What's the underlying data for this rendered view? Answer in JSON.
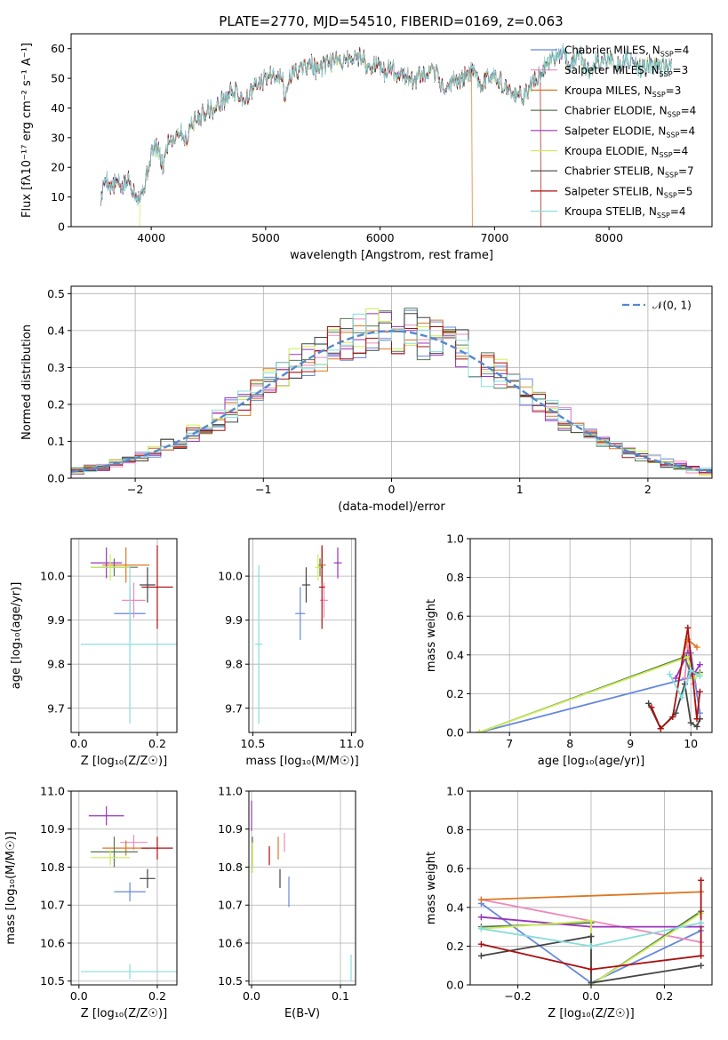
{
  "figure_title": "PLATE=2770, MJD=54510, FIBERID=0169, z=0.063",
  "series_meta": [
    {
      "name": "Chabrier MILES",
      "nssp": "4",
      "color": "#6688dd"
    },
    {
      "name": "Salpeter MILES",
      "nssp": "3",
      "color": "#ee88bb"
    },
    {
      "name": "Kroupa MILES",
      "nssp": "3",
      "color": "#dd7722"
    },
    {
      "name": "Chabrier ELODIE",
      "nssp": "4",
      "color": "#557755"
    },
    {
      "name": "Salpeter ELODIE",
      "nssp": "4",
      "color": "#9933bb"
    },
    {
      "name": "Kroupa ELODIE",
      "nssp": "4",
      "color": "#ccee55"
    },
    {
      "name": "Chabrier STELIB",
      "nssp": "7",
      "color": "#444444"
    },
    {
      "name": "Salpeter STELIB",
      "nssp": "5",
      "color": "#aa1111"
    },
    {
      "name": "Kroupa STELIB",
      "nssp": "4",
      "color": "#88dddd"
    }
  ],
  "chart_data": [
    {
      "id": "spectrum",
      "type": "line",
      "xlabel": "wavelength [Angstrom, rest frame]",
      "ylabel": "Flux [fλ10⁻¹⁷ erg cm⁻² s⁻¹ A⁻¹]",
      "xlim": [
        3300,
        8900
      ],
      "ylim": [
        0,
        65
      ],
      "xticks": [
        4000,
        5000,
        6000,
        7000,
        8000
      ],
      "yticks": [
        0,
        10,
        20,
        30,
        40,
        50,
        60
      ],
      "legend": "top-right",
      "grid": false,
      "x": [
        3560,
        3600,
        3650,
        3700,
        3750,
        3800,
        3850,
        3900,
        3950,
        4000,
        4050,
        4100,
        4150,
        4200,
        4250,
        4300,
        4350,
        4400,
        4450,
        4500,
        4550,
        4600,
        4650,
        4700,
        4750,
        4800,
        4850,
        4900,
        4950,
        5000,
        5050,
        5100,
        5150,
        5175,
        5200,
        5250,
        5300,
        5350,
        5400,
        5450,
        5500,
        5550,
        5600,
        5650,
        5700,
        5750,
        5800,
        5850,
        5890,
        5900,
        5950,
        6000,
        6050,
        6100,
        6150,
        6200,
        6250,
        6300,
        6350,
        6400,
        6450,
        6500,
        6563,
        6600,
        6650,
        6700,
        6750,
        6800,
        6850,
        6900,
        6950,
        7000,
        7050,
        7100,
        7150,
        7200,
        7250,
        7300,
        7350,
        7400,
        7450,
        7500,
        7550,
        7600,
        7650,
        7700,
        7750,
        7800,
        7850,
        7900,
        7950,
        8000,
        8050,
        8100,
        8150,
        8200,
        8250,
        8300,
        8350,
        8400,
        8450,
        8500,
        8550
      ],
      "y": [
        9,
        17,
        13,
        15,
        13,
        16,
        12,
        10,
        15,
        25,
        27,
        20,
        29,
        30,
        33,
        29,
        35,
        36,
        38,
        40,
        39,
        42,
        43,
        46,
        45,
        43,
        44,
        47,
        48,
        50,
        51,
        52,
        49,
        42,
        50,
        52,
        53,
        54,
        55,
        52,
        54,
        55,
        56,
        55,
        57,
        56,
        57,
        58,
        52,
        54,
        55,
        53,
        52,
        54,
        51,
        52,
        50,
        49,
        51,
        50,
        52,
        51,
        46,
        47,
        50,
        49,
        51,
        52,
        50,
        48,
        51,
        52,
        49,
        46,
        45,
        44,
        44,
        47,
        49,
        51,
        55,
        57,
        58,
        59,
        55,
        56,
        59,
        52,
        54,
        56,
        55,
        57,
        55,
        54,
        57,
        55,
        54,
        53,
        55,
        54,
        53,
        54,
        53
      ],
      "dropouts": [
        {
          "series": 5,
          "x": 3900
        },
        {
          "series": 2,
          "x": 6800
        },
        {
          "series": 7,
          "x": 7400
        }
      ]
    },
    {
      "id": "residual-hist",
      "type": "line",
      "xlabel": "(data-model)/error",
      "ylabel": "Normed distribution",
      "xlim": [
        -2.5,
        2.5
      ],
      "ylim": [
        0,
        0.52
      ],
      "xticks": [
        -2,
        -1,
        0,
        1,
        2
      ],
      "yticks": [
        0,
        0.1,
        0.2,
        0.3,
        0.4,
        0.5
      ],
      "legend": "top-right",
      "grid": true,
      "reference_curve": {
        "label": "𝒩(0, 1)",
        "mean": 0,
        "sigma": 1,
        "color": "#5588cc"
      }
    },
    {
      "id": "age-vs-z",
      "type": "scatter",
      "xlabel": "Z [log₁₀(Z/Z☉)]",
      "ylabel": "age  [log₁₀(age/yr)]",
      "xlim": [
        -0.02,
        0.25
      ],
      "ylim": [
        9.645,
        10.085
      ],
      "xticks": [
        0.0,
        0.2
      ],
      "yticks": [
        9.7,
        9.8,
        9.9,
        10.0
      ],
      "grid": true,
      "points": [
        {
          "s": 0,
          "x": 0.13,
          "y": 9.915,
          "xerr": 0.04,
          "yerr": 0.06
        },
        {
          "s": 1,
          "x": 0.14,
          "y": 9.945,
          "xerr": 0.03,
          "yerr": 0.04
        },
        {
          "s": 2,
          "x": 0.12,
          "y": 10.025,
          "xerr": 0.06,
          "yerr": 0.04
        },
        {
          "s": 3,
          "x": 0.09,
          "y": 10.02,
          "xerr": 0.06,
          "yerr": 0.02
        },
        {
          "s": 4,
          "x": 0.07,
          "y": 10.03,
          "xerr": 0.04,
          "yerr": 0.035
        },
        {
          "s": 5,
          "x": 0.08,
          "y": 10.02,
          "xerr": 0.05,
          "yerr": 0.03
        },
        {
          "s": 6,
          "x": 0.175,
          "y": 9.98,
          "xerr": 0.02,
          "yerr": 0.04
        },
        {
          "s": 7,
          "x": 0.2,
          "y": 9.975,
          "xerr": 0.04,
          "yerr": 0.095
        },
        {
          "s": 8,
          "x": 0.13,
          "y": 9.845,
          "xerr": 0.125,
          "yerr": 0.18
        }
      ]
    },
    {
      "id": "age-vs-mass",
      "type": "scatter",
      "xlabel": "mass [log₁₀(M/M☉)]",
      "ylabel": "",
      "xlim": [
        10.48,
        11.02
      ],
      "ylim": [
        9.645,
        10.085
      ],
      "xticks": [
        10.5,
        11.0
      ],
      "yticks": [
        9.7,
        9.8,
        9.9,
        10.0
      ],
      "grid": true,
      "points": [
        {
          "s": 0,
          "x": 10.74,
          "y": 9.915,
          "xerr": 0.025,
          "yerr": 0.06
        },
        {
          "s": 1,
          "x": 10.86,
          "y": 9.945,
          "xerr": 0.02,
          "yerr": 0.04
        },
        {
          "s": 2,
          "x": 10.85,
          "y": 10.025,
          "xerr": 0.02,
          "yerr": 0.04
        },
        {
          "s": 3,
          "x": 10.84,
          "y": 10.02,
          "xerr": 0.015,
          "yerr": 0.02
        },
        {
          "s": 4,
          "x": 10.93,
          "y": 10.03,
          "xerr": 0.02,
          "yerr": 0.035
        },
        {
          "s": 5,
          "x": 10.83,
          "y": 10.02,
          "xerr": 0.015,
          "yerr": 0.03
        },
        {
          "s": 6,
          "x": 10.77,
          "y": 9.98,
          "xerr": 0.02,
          "yerr": 0.04
        },
        {
          "s": 7,
          "x": 10.85,
          "y": 9.975,
          "xerr": 0.015,
          "yerr": 0.095
        },
        {
          "s": 8,
          "x": 10.53,
          "y": 9.845,
          "xerr": 0.02,
          "yerr": 0.18
        }
      ]
    },
    {
      "id": "weight-vs-age",
      "type": "line",
      "xlabel": "age  [log₁₀(age/yr)]",
      "ylabel": "mass weight",
      "xlim": [
        6.35,
        10.35
      ],
      "ylim": [
        0.0,
        1.0
      ],
      "xticks": [
        7,
        8,
        9,
        10
      ],
      "yticks": [
        0.0,
        0.2,
        0.4,
        0.6,
        0.8,
        1.0
      ],
      "grid": true,
      "series": [
        {
          "s": 0,
          "x": [
            6.5,
            9.95,
            10.0,
            10.1,
            10.15
          ],
          "y": [
            0.0,
            0.28,
            0.41,
            0.2,
            0.1
          ]
        },
        {
          "s": 1,
          "x": [
            9.9,
            9.95,
            10.05
          ],
          "y": [
            0.28,
            0.44,
            0.25
          ]
        },
        {
          "s": 2,
          "x": [
            9.85,
            9.95,
            10.1
          ],
          "y": [
            0.38,
            0.48,
            0.44
          ]
        },
        {
          "s": 3,
          "x": [
            6.5,
            9.9,
            10.0,
            10.15
          ],
          "y": [
            0.0,
            0.39,
            0.3,
            0.31
          ]
        },
        {
          "s": 4,
          "x": [
            9.75,
            9.95,
            10.05,
            10.15
          ],
          "y": [
            0.28,
            0.41,
            0.3,
            0.35
          ]
        },
        {
          "s": 5,
          "x": [
            6.5,
            9.95,
            10.05,
            10.15
          ],
          "y": [
            0.0,
            0.39,
            0.28,
            0.3
          ]
        },
        {
          "s": 6,
          "x": [
            9.3,
            9.5,
            9.75,
            9.9,
            10.0,
            10.1,
            10.15
          ],
          "y": [
            0.15,
            0.02,
            0.1,
            0.25,
            0.05,
            0.03,
            0.07
          ]
        },
        {
          "s": 7,
          "x": [
            9.35,
            9.5,
            9.7,
            9.95,
            10.1,
            10.15
          ],
          "y": [
            0.13,
            0.02,
            0.08,
            0.54,
            0.07,
            0.21
          ]
        },
        {
          "s": 8,
          "x": [
            9.65,
            9.85,
            10.0,
            10.15
          ],
          "y": [
            0.3,
            0.18,
            0.32,
            0.29
          ]
        }
      ]
    },
    {
      "id": "mass-vs-z",
      "type": "scatter",
      "xlabel": "Z [log₁₀(Z/Z☉)]",
      "ylabel": "mass [log₁₀(M/M☉)]",
      "xlim": [
        -0.02,
        0.25
      ],
      "ylim": [
        10.49,
        11.0
      ],
      "xticks": [
        0.0,
        0.2
      ],
      "yticks": [
        10.5,
        10.6,
        10.7,
        10.8,
        10.9,
        11.0
      ],
      "grid": true,
      "points": [
        {
          "s": 0,
          "x": 0.13,
          "y": 10.735,
          "xerr": 0.04,
          "yerr": 0.025
        },
        {
          "s": 1,
          "x": 0.14,
          "y": 10.865,
          "xerr": 0.035,
          "yerr": 0.02
        },
        {
          "s": 2,
          "x": 0.12,
          "y": 10.85,
          "xerr": 0.06,
          "yerr": 0.02
        },
        {
          "s": 3,
          "x": 0.09,
          "y": 10.84,
          "xerr": 0.06,
          "yerr": 0.04
        },
        {
          "s": 4,
          "x": 0.07,
          "y": 10.935,
          "xerr": 0.045,
          "yerr": 0.025
        },
        {
          "s": 5,
          "x": 0.08,
          "y": 10.825,
          "xerr": 0.05,
          "yerr": 0.02
        },
        {
          "s": 6,
          "x": 0.175,
          "y": 10.77,
          "xerr": 0.02,
          "yerr": 0.025
        },
        {
          "s": 7,
          "x": 0.2,
          "y": 10.85,
          "xerr": 0.04,
          "yerr": 0.03
        },
        {
          "s": 8,
          "x": 0.13,
          "y": 10.525,
          "xerr": 0.125,
          "yerr": 0.02
        }
      ]
    },
    {
      "id": "mass-vs-ebv",
      "type": "scatter",
      "xlabel": "E(B-V)",
      "ylabel": "",
      "xlim": [
        -0.003,
        0.117
      ],
      "ylim": [
        10.49,
        11.0
      ],
      "xticks": [
        0.0,
        0.1
      ],
      "yticks": [
        10.5,
        10.6,
        10.7,
        10.8,
        10.9,
        11.0
      ],
      "grid": true,
      "points": [
        {
          "s": 0,
          "x": 0.042,
          "y": 10.735,
          "xerr": 0,
          "yerr": 0.04
        },
        {
          "s": 1,
          "x": 0.037,
          "y": 10.865,
          "xerr": 0,
          "yerr": 0.025
        },
        {
          "s": 2,
          "x": 0.03,
          "y": 10.85,
          "xerr": 0,
          "yerr": 0.03
        },
        {
          "s": 3,
          "x": 0.001,
          "y": 10.84,
          "xerr": 0,
          "yerr": 0.04
        },
        {
          "s": 4,
          "x": 0.0,
          "y": 10.935,
          "xerr": 0,
          "yerr": 0.04
        },
        {
          "s": 5,
          "x": 0.001,
          "y": 10.825,
          "xerr": 0,
          "yerr": 0.04
        },
        {
          "s": 6,
          "x": 0.032,
          "y": 10.77,
          "xerr": 0,
          "yerr": 0.025
        },
        {
          "s": 7,
          "x": 0.02,
          "y": 10.83,
          "xerr": 0,
          "yerr": 0.025
        },
        {
          "s": 8,
          "x": 0.112,
          "y": 10.535,
          "xerr": 0,
          "yerr": 0.035
        }
      ]
    },
    {
      "id": "weight-vs-z",
      "type": "line",
      "xlabel": "Z [log₁₀(Z/Z☉)]",
      "ylabel": "mass weight",
      "xlim": [
        -0.33,
        0.33
      ],
      "ylim": [
        0.0,
        1.0
      ],
      "xticks": [
        -0.2,
        0.0,
        0.2
      ],
      "yticks": [
        0.0,
        0.2,
        0.4,
        0.6,
        0.8,
        1.0
      ],
      "grid": true,
      "series": [
        {
          "s": 0,
          "x": [
            -0.3,
            0.0,
            0.3,
            0.3
          ],
          "y": [
            0.42,
            0.01,
            0.28,
            0.3
          ]
        },
        {
          "s": 1,
          "x": [
            -0.3,
            0.3
          ],
          "y": [
            0.44,
            0.22
          ]
        },
        {
          "s": 2,
          "x": [
            -0.3,
            0.3
          ],
          "y": [
            0.44,
            0.48
          ]
        },
        {
          "s": 3,
          "x": [
            -0.3,
            0.0,
            0.0,
            0.3
          ],
          "y": [
            0.3,
            0.32,
            0.0,
            0.38
          ]
        },
        {
          "s": 4,
          "x": [
            -0.3,
            0.0,
            0.3
          ],
          "y": [
            0.35,
            0.3,
            0.3
          ]
        },
        {
          "s": 5,
          "x": [
            -0.3,
            0.0,
            0.0,
            0.3
          ],
          "y": [
            0.29,
            0.33,
            0.0,
            0.37
          ]
        },
        {
          "s": 6,
          "x": [
            -0.3,
            0.0,
            0.0,
            0.3
          ],
          "y": [
            0.15,
            0.25,
            0.01,
            0.1
          ]
        },
        {
          "s": 7,
          "x": [
            -0.3,
            0.0,
            0.3,
            0.3
          ],
          "y": [
            0.21,
            0.08,
            0.15,
            0.54
          ]
        },
        {
          "s": 8,
          "x": [
            -0.3,
            0.0,
            0.3
          ],
          "y": [
            0.29,
            0.2,
            0.32
          ]
        }
      ]
    }
  ]
}
